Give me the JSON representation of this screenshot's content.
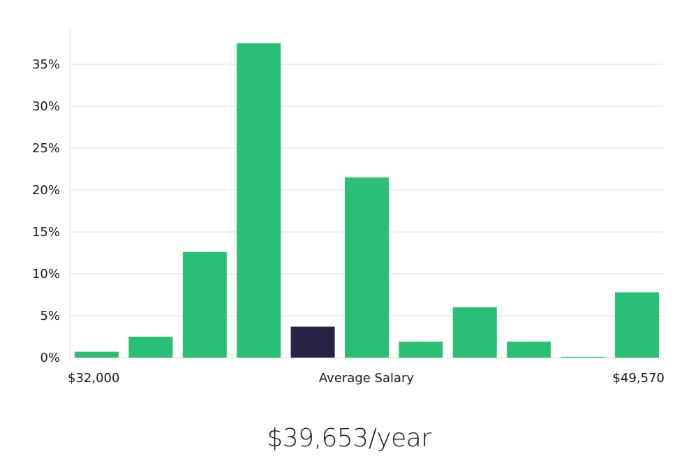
{
  "chart_data": {
    "type": "bar",
    "categories": [
      "1",
      "2",
      "3",
      "4",
      "5",
      "6",
      "7",
      "8",
      "9",
      "10",
      "11"
    ],
    "values": [
      0.7,
      2.5,
      12.6,
      37.5,
      3.7,
      21.5,
      1.9,
      6.0,
      1.9,
      0.1,
      7.8
    ],
    "highlight_index": 4,
    "ylim": [
      0,
      38
    ],
    "yticks": [
      0,
      5,
      10,
      15,
      20,
      25,
      30,
      35
    ],
    "ytick_labels": [
      "0%",
      "5%",
      "10%",
      "15%",
      "20%",
      "25%",
      "30%",
      "35%"
    ],
    "x_label_left": "$32,000",
    "x_label_center": "Average Salary",
    "x_label_right": "$49,570",
    "grid": true,
    "colors": {
      "bar": "#2abf77",
      "highlight": "#272345",
      "grid": "#dddddd",
      "axis": "#e2e2e2"
    }
  },
  "summary": {
    "salary": "$39,653/year"
  }
}
